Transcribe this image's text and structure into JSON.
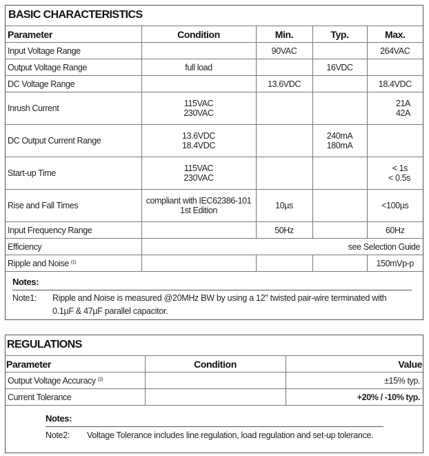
{
  "basic": {
    "title": "BASIC CHARACTERISTICS",
    "headers": [
      "Parameter",
      "Condition",
      "Min.",
      "Typ.",
      "Max."
    ],
    "rows": [
      {
        "param": "Input Voltage Range",
        "cond": "",
        "min": "90VAC",
        "typ": "",
        "max": "264VAC"
      },
      {
        "param": "Output Voltage Range",
        "cond": "full load",
        "min": "",
        "typ": "16VDC",
        "max": ""
      },
      {
        "param": "DC Voltage Range",
        "cond": "",
        "min": "13.6VDC",
        "typ": "",
        "max": "18.4VDC"
      },
      {
        "param": "Inrush Current",
        "cond": "115VAC",
        "cond2": "230VAC",
        "min": "",
        "typ": "",
        "max": "21A",
        "max2": "42A"
      },
      {
        "param": "DC Output Current Range",
        "cond": "13.6VDC",
        "cond2": "18.4VDC",
        "min": "",
        "typ": "240mA",
        "typ2": "180mA",
        "max": ""
      },
      {
        "param": "Start-up Time",
        "cond": "115VAC",
        "cond2": "230VAC",
        "min": "",
        "typ": "",
        "max": "< 1s",
        "max2": "< 0.5s"
      },
      {
        "param": "Rise and Fall Times",
        "cond": "compliant with IEC62386-101",
        "cond2": "1st Edition",
        "min": "10µs",
        "typ": "",
        "max": "<100µs"
      },
      {
        "param": "Input Frequency Range",
        "cond": "",
        "min": "50Hz",
        "typ": "",
        "max": "60Hz"
      },
      {
        "param": "Efficiency",
        "value": "see Selection Guide"
      },
      {
        "param": "Ripple and Noise",
        "sup": "(1)",
        "cond": "",
        "min": "",
        "typ": "",
        "max": "150mVp-p"
      }
    ],
    "notes_heading": "Notes:",
    "notes": [
      {
        "label": "Note1:",
        "line1": "Ripple and Noise is measured @20MHz BW by using a 12\" twisted pair-wire terminated with",
        "line2": "0.1µF & 47µF parallel capacitor."
      }
    ]
  },
  "regulations": {
    "title": "REGULATIONS",
    "headers": [
      "Parameter",
      "Condition",
      "Value"
    ],
    "rows": [
      {
        "param": "Output Voltage Accuracy",
        "sup": "(2)",
        "cond": "",
        "value": "±15% typ."
      },
      {
        "param": "Current Tolerance",
        "cond": "",
        "value": "+20% / -10% typ."
      }
    ],
    "notes_heading": "Notes:",
    "notes": [
      {
        "label": "Note2:",
        "text": "Voltage Tolerance includes line regulation, load regulation and set-up tolerance."
      }
    ]
  }
}
